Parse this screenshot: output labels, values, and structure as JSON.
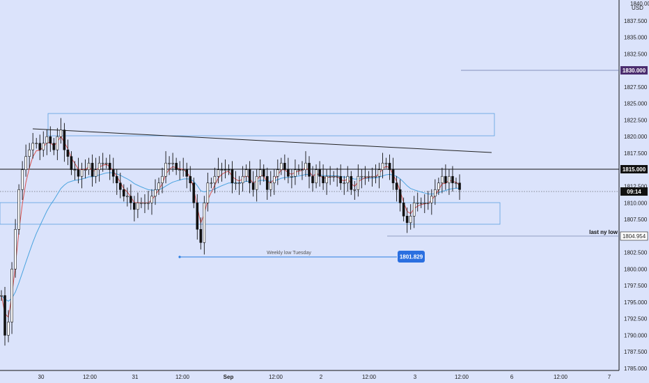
{
  "chart_data": {
    "type": "candlestick",
    "currency": "USD",
    "y_axis": {
      "ylim": [
        1785.0,
        1840.0
      ],
      "ticks": [
        "1837.500",
        "1835.000",
        "1832.500",
        "1827.500",
        "1825.000",
        "1822.500",
        "1820.000",
        "1817.500",
        "1812.500",
        "1810.000",
        "1807.500",
        "1802.500",
        "1800.000",
        "1797.500",
        "1795.000",
        "1792.500",
        "1790.000",
        "1787.500",
        "1785.000"
      ],
      "tick_values": [
        1837.5,
        1835.0,
        1832.5,
        1827.5,
        1825.0,
        1822.5,
        1820.0,
        1817.5,
        1812.5,
        1810.0,
        1807.5,
        1802.5,
        1800.0,
        1797.5,
        1795.0,
        1792.5,
        1790.0,
        1787.5,
        1785.0
      ],
      "top_partial_label": "1840.000"
    },
    "x_axis": {
      "labels": [
        "30",
        "12:00",
        "31",
        "12:00",
        "Sep",
        "12:00",
        "2",
        "12:00",
        "3",
        "12:00",
        "6",
        "12:00",
        "7"
      ],
      "bold": [
        false,
        false,
        false,
        false,
        true,
        false,
        false,
        false,
        false,
        false,
        false,
        false,
        false
      ],
      "positions_index": [
        0,
        1,
        2,
        3,
        4,
        5,
        6,
        7,
        8,
        9,
        10,
        11,
        12
      ]
    },
    "price_tags": [
      {
        "label": "1830.000",
        "value": 1830.0,
        "color": "#4a2c6e"
      },
      {
        "label": "1815.000",
        "value": 1815.0,
        "color": "#111111"
      },
      {
        "label": "1804.954",
        "value": 1804.954,
        "color": "#ffffff",
        "text_color": "#111111"
      },
      {
        "label": "09:14",
        "value": 1812.0,
        "color": "#111111",
        "second": "1812.500"
      }
    ],
    "annotations": {
      "weekly_low_label": "Weekly low Tuesday",
      "weekly_low_value": "1801.829",
      "last_ny_low_label": "last ny low"
    },
    "series": [
      {
        "name": "price",
        "color": "#111111"
      },
      {
        "name": "ma_fast",
        "color": "#d9534f"
      },
      {
        "name": "ma_slow",
        "color": "#4aa3df"
      }
    ],
    "closes": [
      1796,
      1790,
      1792,
      1800,
      1806,
      1812,
      1815,
      1817,
      1818,
      1819,
      1819,
      1818,
      1819,
      1820,
      1819,
      1818,
      1820,
      1821,
      1818,
      1817,
      1815,
      1815,
      1814,
      1815,
      1815,
      1816,
      1814,
      1815,
      1816,
      1816,
      1816,
      1815,
      1814,
      1813,
      1812,
      1811,
      1811,
      1810,
      1809,
      1810,
      1810,
      1810,
      1810,
      1811,
      1812,
      1813,
      1814,
      1816,
      1816,
      1816,
      1815,
      1815,
      1815,
      1814,
      1813,
      1810,
      1806,
      1804,
      1810,
      1813,
      1813,
      1814,
      1815,
      1815,
      1815,
      1815,
      1813,
      1813,
      1813,
      1814,
      1815,
      1813,
      1812,
      1814,
      1815,
      1814,
      1812,
      1813,
      1814,
      1815,
      1816,
      1815,
      1814,
      1814,
      1815,
      1815,
      1815,
      1816,
      1814,
      1813,
      1815,
      1814,
      1813,
      1814,
      1814,
      1814,
      1814,
      1813,
      1813,
      1814,
      1812,
      1812,
      1814,
      1814,
      1814,
      1814,
      1814,
      1814,
      1815,
      1816,
      1816,
      1815,
      1813,
      1812,
      1810,
      1808,
      1807,
      1808,
      1810,
      1810,
      1810,
      1810,
      1810,
      1811,
      1812,
      1813,
      1814,
      1813,
      1814,
      1813,
      1813,
      1812
    ]
  }
}
